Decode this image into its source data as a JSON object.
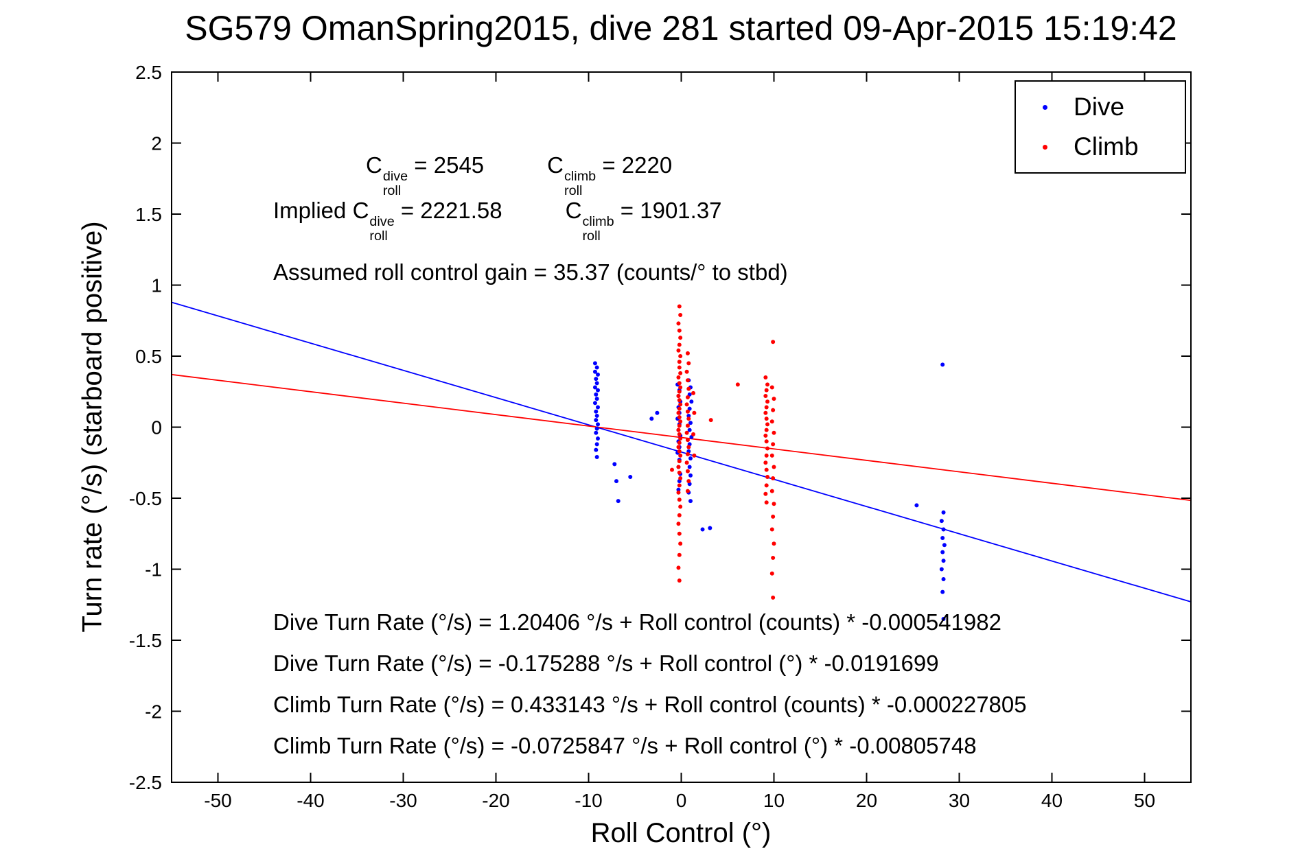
{
  "chart_data": {
    "type": "scatter",
    "title": "SG579 OmanSpring2015, dive 281 started 09-Apr-2015 15:19:42",
    "xlabel": "Roll Control (°)",
    "ylabel": "Turn rate (°/s) (starboard positive)",
    "xlim": [
      -55,
      55
    ],
    "ylim": [
      -2.5,
      2.5
    ],
    "xticks": [
      -50,
      -40,
      -30,
      -20,
      -10,
      0,
      10,
      20,
      30,
      40,
      50
    ],
    "yticks": [
      -2.5,
      -2,
      -1.5,
      -1,
      -0.5,
      0,
      0.5,
      1,
      1.5,
      2,
      2.5
    ],
    "grid": false,
    "legend_position": "top-right",
    "series": [
      {
        "name": "Dive",
        "color": "#0000ff",
        "marker": "dot",
        "points": [
          [
            -9.3,
            0.45
          ],
          [
            -9.1,
            0.42
          ],
          [
            -9.3,
            0.39
          ],
          [
            -9.0,
            0.37
          ],
          [
            -9.2,
            0.34
          ],
          [
            -9.1,
            0.31
          ],
          [
            -9.3,
            0.28
          ],
          [
            -9.0,
            0.26
          ],
          [
            -9.2,
            0.23
          ],
          [
            -9.1,
            0.2
          ],
          [
            -9.3,
            0.17
          ],
          [
            -9.0,
            0.14
          ],
          [
            -9.2,
            0.11
          ],
          [
            -9.1,
            0.08
          ],
          [
            -9.2,
            0.05
          ],
          [
            -9.0,
            0.02
          ],
          [
            -9.1,
            -0.01
          ],
          [
            -9.2,
            -0.04
          ],
          [
            -9.0,
            -0.08
          ],
          [
            -9.1,
            -0.12
          ],
          [
            -9.2,
            -0.16
          ],
          [
            -9.1,
            -0.21
          ],
          [
            -7.2,
            -0.26
          ],
          [
            -7.0,
            -0.38
          ],
          [
            -6.8,
            -0.52
          ],
          [
            -5.5,
            -0.35
          ],
          [
            -3.2,
            0.06
          ],
          [
            -2.6,
            0.1
          ],
          [
            -0.4,
            0.3
          ],
          [
            -0.2,
            0.26
          ],
          [
            -0.3,
            0.22
          ],
          [
            -0.1,
            0.18
          ],
          [
            -0.3,
            0.14
          ],
          [
            -0.2,
            0.1
          ],
          [
            -0.4,
            0.06
          ],
          [
            -0.2,
            0.02
          ],
          [
            -0.3,
            -0.02
          ],
          [
            -0.1,
            -0.06
          ],
          [
            -0.3,
            -0.1
          ],
          [
            -0.2,
            -0.14
          ],
          [
            -0.4,
            -0.18
          ],
          [
            -0.2,
            -0.23
          ],
          [
            -0.3,
            -0.28
          ],
          [
            -0.1,
            -0.33
          ],
          [
            -0.2,
            -0.38
          ],
          [
            -0.3,
            -0.44
          ],
          [
            0.8,
            0.33
          ],
          [
            1.0,
            0.28
          ],
          [
            0.9,
            0.23
          ],
          [
            1.1,
            0.18
          ],
          [
            0.9,
            0.13
          ],
          [
            0.8,
            0.08
          ],
          [
            1.0,
            0.03
          ],
          [
            0.9,
            -0.02
          ],
          [
            1.1,
            -0.07
          ],
          [
            0.9,
            -0.12
          ],
          [
            0.8,
            -0.17
          ],
          [
            1.0,
            -0.22
          ],
          [
            0.9,
            -0.28
          ],
          [
            1.0,
            -0.34
          ],
          [
            0.9,
            -0.4
          ],
          [
            0.8,
            -0.46
          ],
          [
            1.0,
            -0.52
          ],
          [
            2.3,
            -0.72
          ],
          [
            3.1,
            -0.71
          ],
          [
            25.4,
            -0.55
          ],
          [
            28.2,
            0.44
          ],
          [
            28.3,
            -0.6
          ],
          [
            28.1,
            -0.66
          ],
          [
            28.3,
            -0.72
          ],
          [
            28.2,
            -0.78
          ],
          [
            28.4,
            -0.83
          ],
          [
            28.2,
            -0.88
          ],
          [
            28.3,
            -0.94
          ],
          [
            28.1,
            -1.0
          ],
          [
            28.3,
            -1.07
          ],
          [
            28.2,
            -1.16
          ],
          [
            28.3,
            -1.35
          ]
        ]
      },
      {
        "name": "Climb",
        "color": "#ff0000",
        "marker": "dot",
        "points": [
          [
            -0.2,
            0.85
          ],
          [
            -0.1,
            0.79
          ],
          [
            -0.3,
            0.73
          ],
          [
            -0.2,
            0.68
          ],
          [
            -0.1,
            0.63
          ],
          [
            -0.2,
            0.58
          ],
          [
            -0.3,
            0.54
          ],
          [
            -0.1,
            0.5
          ],
          [
            -0.2,
            0.46
          ],
          [
            -0.2,
            0.42
          ],
          [
            -0.1,
            0.38
          ],
          [
            -0.3,
            0.35
          ],
          [
            -0.2,
            0.31
          ],
          [
            -0.1,
            0.28
          ],
          [
            -0.2,
            0.25
          ],
          [
            -0.3,
            0.22
          ],
          [
            -0.2,
            0.19
          ],
          [
            -0.1,
            0.16
          ],
          [
            -0.2,
            0.13
          ],
          [
            -0.3,
            0.1
          ],
          [
            -0.2,
            0.07
          ],
          [
            -0.1,
            0.04
          ],
          [
            -0.2,
            0.01
          ],
          [
            -0.3,
            -0.02
          ],
          [
            -0.2,
            -0.05
          ],
          [
            -0.1,
            -0.08
          ],
          [
            -0.2,
            -0.11
          ],
          [
            -0.3,
            -0.14
          ],
          [
            -0.2,
            -0.17
          ],
          [
            -0.1,
            -0.2
          ],
          [
            -0.2,
            -0.24
          ],
          [
            -0.3,
            -0.28
          ],
          [
            -0.2,
            -0.32
          ],
          [
            -0.1,
            -0.36
          ],
          [
            -0.2,
            -0.41
          ],
          [
            -0.3,
            -0.46
          ],
          [
            -0.2,
            -0.51
          ],
          [
            -0.1,
            -0.56
          ],
          [
            -0.2,
            -0.62
          ],
          [
            -0.3,
            -0.68
          ],
          [
            -0.2,
            -0.75
          ],
          [
            -0.1,
            -0.82
          ],
          [
            -0.2,
            -0.9
          ],
          [
            -0.3,
            -0.99
          ],
          [
            -0.2,
            -1.08
          ],
          [
            0.7,
            0.52
          ],
          [
            0.8,
            0.45
          ],
          [
            0.6,
            0.39
          ],
          [
            0.7,
            0.33
          ],
          [
            0.8,
            0.27
          ],
          [
            0.7,
            0.21
          ],
          [
            0.6,
            0.16
          ],
          [
            0.7,
            0.11
          ],
          [
            0.8,
            0.06
          ],
          [
            0.7,
            0.01
          ],
          [
            0.6,
            -0.04
          ],
          [
            0.7,
            -0.09
          ],
          [
            0.8,
            -0.14
          ],
          [
            0.7,
            -0.19
          ],
          [
            0.6,
            -0.25
          ],
          [
            0.7,
            -0.31
          ],
          [
            0.8,
            -0.38
          ],
          [
            0.7,
            -0.45
          ],
          [
            1.3,
            0.24
          ],
          [
            1.4,
            0.1
          ],
          [
            1.3,
            -0.05
          ],
          [
            1.4,
            -0.2
          ],
          [
            3.2,
            0.05
          ],
          [
            6.1,
            0.3
          ],
          [
            -1.0,
            -0.3
          ],
          [
            9.1,
            0.35
          ],
          [
            9.3,
            0.3
          ],
          [
            9.2,
            0.26
          ],
          [
            9.1,
            0.22
          ],
          [
            9.3,
            0.18
          ],
          [
            9.2,
            0.14
          ],
          [
            9.1,
            0.1
          ],
          [
            9.2,
            0.06
          ],
          [
            9.3,
            0.02
          ],
          [
            9.2,
            -0.02
          ],
          [
            9.1,
            -0.06
          ],
          [
            9.2,
            -0.1
          ],
          [
            9.3,
            -0.15
          ],
          [
            9.2,
            -0.2
          ],
          [
            9.1,
            -0.25
          ],
          [
            9.2,
            -0.3
          ],
          [
            9.3,
            -0.35
          ],
          [
            9.2,
            -0.41
          ],
          [
            9.1,
            -0.47
          ],
          [
            9.2,
            -0.53
          ],
          [
            9.9,
            0.6
          ],
          [
            9.8,
            0.28
          ],
          [
            10.0,
            0.2
          ],
          [
            9.9,
            0.12
          ],
          [
            9.8,
            0.04
          ],
          [
            10.0,
            -0.04
          ],
          [
            9.9,
            -0.12
          ],
          [
            9.8,
            -0.2
          ],
          [
            10.0,
            -0.28
          ],
          [
            9.9,
            -0.36
          ],
          [
            9.8,
            -0.45
          ],
          [
            10.0,
            -0.54
          ],
          [
            9.9,
            -0.63
          ],
          [
            9.8,
            -0.72
          ],
          [
            10.0,
            -0.82
          ],
          [
            9.9,
            -0.92
          ],
          [
            9.8,
            -1.03
          ],
          [
            9.9,
            -1.2
          ]
        ]
      }
    ],
    "fit_lines": [
      {
        "name": "Dive fit",
        "color": "#0000ff",
        "intercept": -0.175288,
        "slope": -0.0191699
      },
      {
        "name": "Climb fit",
        "color": "#ff0000",
        "intercept": -0.0725847,
        "slope": -0.00805748
      }
    ],
    "annotations": {
      "coeffs_line1": {
        "parts": [
          {
            "base": "C",
            "sup": "dive",
            "sub": "roll",
            "rest": " = 2545"
          },
          {
            "base": "C",
            "sup": "climb",
            "sub": "roll",
            "rest": " = 2220"
          }
        ]
      },
      "coeffs_line2": {
        "prefix": "Implied ",
        "parts": [
          {
            "base": "C",
            "sup": "dive",
            "sub": "roll",
            "rest": " = 2221.58"
          },
          {
            "base": "C",
            "sup": "climb",
            "sub": "roll",
            "rest": " = 1901.37"
          }
        ]
      },
      "gain_line": "Assumed roll control gain = 35.37 (counts/° to stbd)",
      "equations": [
        "Dive Turn Rate (°/s) = 1.20406 °/s + Roll control (counts) * -0.000541982",
        "Dive Turn Rate (°/s) = -0.175288 °/s + Roll control (°) * -0.0191699",
        "Climb Turn Rate (°/s) = 0.433143 °/s + Roll control (counts) * -0.000227805",
        "Climb Turn Rate (°/s) = -0.0725847 °/s + Roll control (°) * -0.00805748"
      ]
    }
  }
}
